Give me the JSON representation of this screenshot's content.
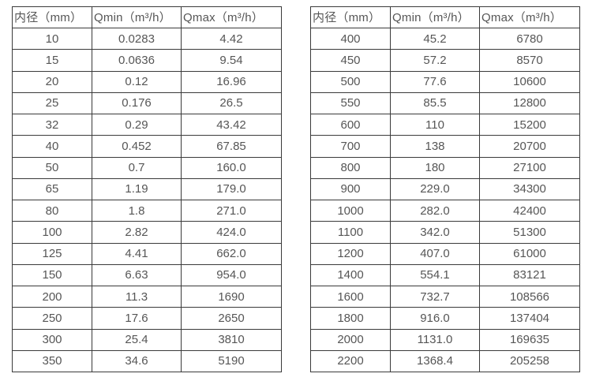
{
  "page": {
    "background_color": "#ffffff",
    "border_color": "#3a3a3a",
    "text_color": "#565656"
  },
  "tables": [
    {
      "name": "flow-table-small-diameters",
      "headers": [
        "内径（mm）",
        "Qmin（m³/h）",
        "Qmax（m³/h）"
      ],
      "rows": [
        [
          "10",
          "0.0283",
          "4.42"
        ],
        [
          "15",
          "0.0636",
          "9.54"
        ],
        [
          "20",
          "0.12",
          "16.96"
        ],
        [
          "25",
          "0.176",
          "26.5"
        ],
        [
          "32",
          "0.29",
          "43.42"
        ],
        [
          "40",
          "0.452",
          "67.85"
        ],
        [
          "50",
          "0.7",
          "160.0"
        ],
        [
          "65",
          "1.19",
          "179.0"
        ],
        [
          "80",
          "1.8",
          "271.0"
        ],
        [
          "100",
          "2.82",
          "424.0"
        ],
        [
          "125",
          "4.41",
          "662.0"
        ],
        [
          "150",
          "6.63",
          "954.0"
        ],
        [
          "200",
          "11.3",
          "1690"
        ],
        [
          "250",
          "17.6",
          "2650"
        ],
        [
          "300",
          "25.4",
          "3810"
        ],
        [
          "350",
          "34.6",
          "5190"
        ]
      ]
    },
    {
      "name": "flow-table-large-diameters",
      "headers": [
        "内径（mm）",
        "Qmin（m³/h）",
        "Qmax（m³/h）"
      ],
      "rows": [
        [
          "400",
          "45.2",
          "6780"
        ],
        [
          "450",
          "57.2",
          "8570"
        ],
        [
          "500",
          "77.6",
          "10600"
        ],
        [
          "550",
          "85.5",
          "12800"
        ],
        [
          "600",
          "110",
          "15200"
        ],
        [
          "700",
          "138",
          "20700"
        ],
        [
          "800",
          "180",
          "27100"
        ],
        [
          "900",
          "229.0",
          "34300"
        ],
        [
          "1000",
          "282.0",
          "42400"
        ],
        [
          "1100",
          "342.0",
          "51300"
        ],
        [
          "1200",
          "407.0",
          "61000"
        ],
        [
          "1400",
          "554.1",
          "83121"
        ],
        [
          "1600",
          "732.7",
          "108566"
        ],
        [
          "1800",
          "916.0",
          "137404"
        ],
        [
          "2000",
          "1131.0",
          "169635"
        ],
        [
          "2200",
          "1368.4",
          "205258"
        ]
      ]
    }
  ]
}
